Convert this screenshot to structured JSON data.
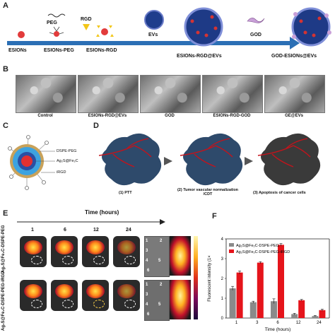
{
  "panelA": {
    "letter": "A",
    "reagents": {
      "peg": "PEG",
      "rgd": "RGD",
      "evs": "EVs",
      "god": "GOD"
    },
    "stages": [
      "ESIONs",
      "ESIONs-PEG",
      "ESIONs-RGD",
      "ESIONs-RGD@EVs",
      "GOD-ESIONs@EVs"
    ]
  },
  "panelB": {
    "letter": "B",
    "captions": [
      "Control",
      "ESIONs-RGD@EVs",
      "GOD",
      "ESIONs-RGD-GOD",
      "GE@EVs"
    ]
  },
  "panelC": {
    "letter": "C",
    "labels": [
      "DSPE-PEG",
      "Ag₂S@Fe₂C",
      "iRGD"
    ]
  },
  "panelD": {
    "letter": "D",
    "captions": [
      "(1) PTT",
      "(2) Tumor vascular normalization /CDT",
      "(3) Apoptosis of cancer cells"
    ]
  },
  "panelE": {
    "letter": "E",
    "time_title": "Time (hours)",
    "times": [
      "1",
      "6",
      "12",
      "24"
    ],
    "row_labels": [
      "Ag₂S@Fe₂C-DSPE-PEG",
      "Ag₂S@Fe₂C-DSPE-PEG-iRGD"
    ],
    "organ_numbers_top": [
      "1",
      "2",
      "3",
      "4",
      "5",
      "6"
    ],
    "organ_numbers_bottom": [
      "1",
      "2",
      "3",
      "4",
      "5",
      "6"
    ]
  },
  "panelF": {
    "letter": "F",
    "chart_data": {
      "type": "bar",
      "categories": [
        "1",
        "3",
        "6",
        "12",
        "24"
      ],
      "series": [
        {
          "name": "Ag₂S@Fe₂C-DSPE-PEG",
          "values": [
            1.5,
            0.8,
            0.85,
            0.2,
            0.1
          ],
          "color": "#8a8a8a"
        },
        {
          "name": "Ag₂S@Fe₂C-DSPE-PEG-iRGD",
          "values": [
            2.3,
            2.8,
            3.7,
            0.9,
            0.4
          ],
          "color": "#e5141b"
        }
      ],
      "errors": [
        [
          0.1,
          0.05,
          0.12,
          0.04,
          0.03
        ],
        [
          0.08,
          0.05,
          0.06,
          0.04,
          0.05
        ]
      ],
      "xlabel": "Time (hours)",
      "ylabel": "Fluorescent intensity (1×",
      "yticks": [
        "0",
        "1",
        "2",
        "3",
        "4"
      ],
      "ylim": [
        0,
        4
      ],
      "legend": "top-left"
    }
  }
}
